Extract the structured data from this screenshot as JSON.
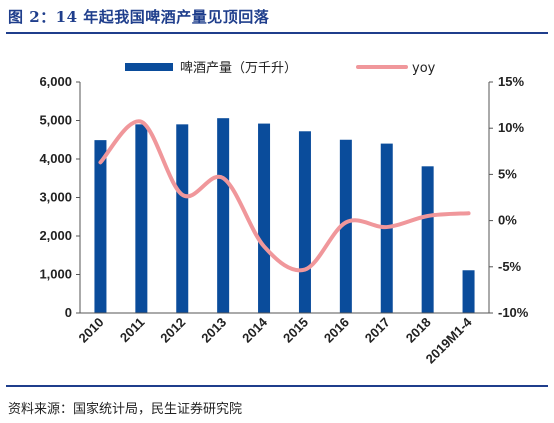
{
  "title": "图 2：14 年起我国啤酒产量见顶回落",
  "source": "资料来源：国家统计局，民生证券研究院",
  "colors": {
    "bar": "#0a4c9b",
    "line": "#f0979b",
    "rule": "#1f3e8c"
  },
  "chart_data": {
    "type": "bar+line",
    "categories": [
      "2010",
      "2011",
      "2012",
      "2013",
      "2014",
      "2015",
      "2016",
      "2017",
      "2018",
      "2019M1-4"
    ],
    "series": [
      {
        "name": "啤酒产量（万千升）",
        "type": "bar",
        "axis": "left",
        "values": [
          4490,
          4900,
          4900,
          5060,
          4920,
          4720,
          4500,
          4400,
          3810,
          1110
        ]
      },
      {
        "name": "yoy",
        "type": "line",
        "axis": "right",
        "values": [
          6.3,
          10.7,
          2.8,
          4.6,
          -2.8,
          -5.3,
          -0.2,
          -0.7,
          0.5,
          0.8
        ]
      }
    ],
    "y_left": {
      "lim": [
        0,
        6000
      ],
      "ticks": [
        "0",
        "1,000",
        "2,000",
        "3,000",
        "4,000",
        "5,000",
        "6,000"
      ]
    },
    "y_right": {
      "lim": [
        -10,
        15
      ],
      "ticks": [
        "-10%",
        "-5%",
        "0%",
        "5%",
        "10%",
        "15%"
      ]
    },
    "legend_position": "top"
  }
}
